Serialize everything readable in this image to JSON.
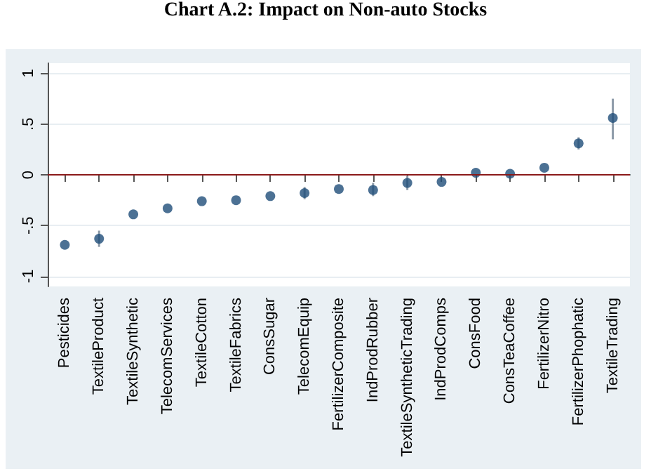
{
  "chart_data": {
    "type": "scatter",
    "title": "Chart A.2: Impact on Non-auto Stocks",
    "categories": [
      "Pesticides",
      "TextileProduct",
      "TextileSynthetic",
      "TelecomServices",
      "TextileCotton",
      "TextileFabrics",
      "ConsSugar",
      "TelecomEquip",
      "FertilizerComposite",
      "IndProdRubber",
      "TextileSyntheticTrading",
      "IndProdComps",
      "ConsFood",
      "ConsTeaCoffee",
      "FertilizerNitro",
      "FertilizerPhophatic",
      "TextileTrading"
    ],
    "series": [
      {
        "color": "#1f4e79",
        "values": [
          -0.69,
          -0.63,
          -0.39,
          -0.33,
          -0.26,
          -0.25,
          -0.21,
          -0.18,
          -0.14,
          -0.15,
          -0.08,
          -0.07,
          0.02,
          0.01,
          0.07,
          0.31,
          0.56
        ],
        "errors": [
          null,
          [
            -0.71,
            -0.55
          ],
          null,
          null,
          null,
          null,
          null,
          [
            -0.24,
            -0.12
          ],
          null,
          [
            -0.21,
            -0.08
          ],
          [
            -0.15,
            -0.01
          ],
          null,
          null,
          null,
          null,
          [
            0.25,
            0.37
          ],
          [
            0.35,
            0.75
          ]
        ]
      }
    ],
    "ylim": [
      -1.1,
      1.1
    ],
    "yticks": [
      {
        "value": -1,
        "label": "-1"
      },
      {
        "value": -0.5,
        "label": "-.5"
      },
      0,
      {
        "value": 0.5,
        "label": ".5"
      },
      1
    ],
    "grid": "y",
    "marker": "circle",
    "ref_lines": [
      {
        "axis": "y",
        "value": 0,
        "color": "#8b1a1a"
      }
    ]
  }
}
